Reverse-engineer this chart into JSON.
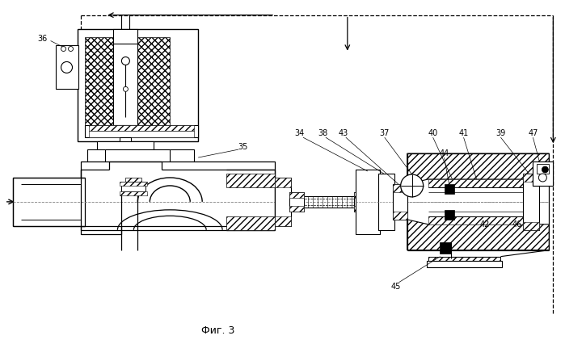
{
  "title": "Фиг. 3",
  "bg_color": "#ffffff",
  "line_color": "#000000",
  "figsize": [
    6.99,
    4.26
  ],
  "dpi": 100
}
